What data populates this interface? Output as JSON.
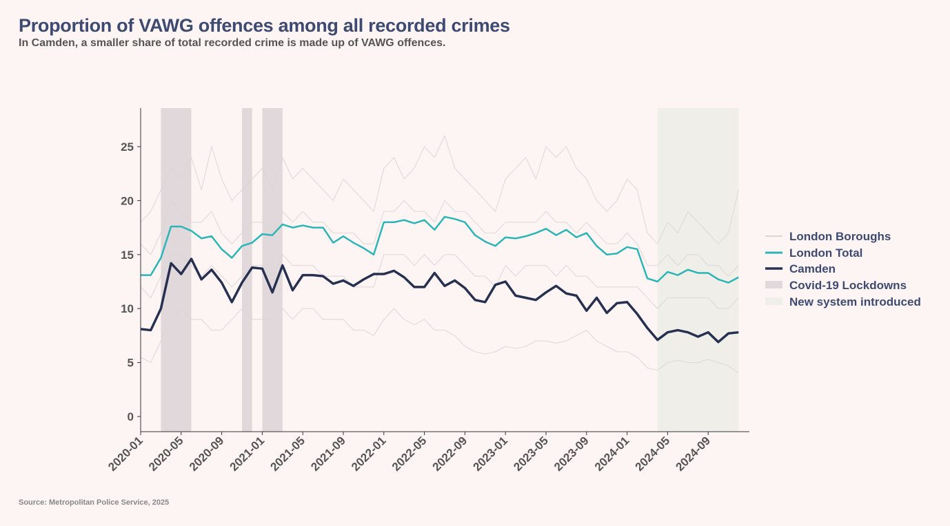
{
  "title": "Proportion of VAWG offences among all recorded crimes",
  "subtitle": "In Camden, a smaller share of total recorded crime is made up of VAWG offences.",
  "source": "Source: Metropolitan Police Service, 2025",
  "colors": {
    "background": "#fdf4f4",
    "title": "#3d4a72",
    "london_total": "#2bb5b8",
    "camden": "#263050",
    "boroughs": "#d9d6d6",
    "lockdown": "#e0d8da",
    "new_system": "#efeee9"
  },
  "chart_data": {
    "type": "line",
    "start_month": "2020-01",
    "x_ticks": [
      "2020-01",
      "2020-05",
      "2020-09",
      "2021-01",
      "2021-05",
      "2021-09",
      "2022-01",
      "2022-05",
      "2022-09",
      "2023-01",
      "2023-05",
      "2023-09",
      "2024-01",
      "2024-05",
      "2024-09"
    ],
    "y_ticks": [
      0,
      5,
      10,
      15,
      20,
      25
    ],
    "ylim": [
      -1.4,
      28.6
    ],
    "grid": false,
    "legend_position": "right",
    "legend": [
      "London Boroughs",
      "London Total",
      "Camden",
      "Covid-19 Lockdowns",
      "New system introduced"
    ],
    "series": [
      {
        "name": "London Total",
        "values": [
          13.1,
          13.1,
          14.7,
          17.6,
          17.6,
          17.2,
          16.5,
          16.7,
          15.5,
          14.7,
          15.8,
          16.1,
          16.9,
          16.8,
          17.8,
          17.5,
          17.7,
          17.5,
          17.5,
          16.1,
          16.7,
          16.1,
          15.6,
          15.0,
          18.0,
          18.0,
          18.2,
          17.9,
          18.2,
          17.3,
          18.5,
          18.3,
          18.0,
          16.8,
          16.2,
          15.8,
          16.6,
          16.5,
          16.7,
          17.0,
          17.4,
          16.8,
          17.3,
          16.6,
          17.0,
          15.8,
          15.0,
          15.1,
          15.7,
          15.5,
          12.8,
          12.5,
          13.4,
          13.1,
          13.6,
          13.3,
          13.3,
          12.7,
          12.4,
          12.9
        ]
      },
      {
        "name": "Camden",
        "values": [
          8.1,
          8.0,
          10.0,
          14.2,
          13.2,
          14.6,
          12.7,
          13.6,
          12.4,
          10.6,
          12.4,
          13.8,
          13.7,
          11.5,
          14.0,
          11.7,
          13.1,
          13.1,
          13.0,
          12.3,
          12.6,
          12.1,
          12.7,
          13.2,
          13.2,
          13.5,
          12.9,
          12.0,
          12.0,
          13.3,
          12.1,
          12.6,
          11.9,
          10.8,
          10.6,
          12.2,
          12.5,
          11.2,
          11.0,
          10.8,
          11.5,
          12.1,
          11.4,
          11.2,
          9.8,
          11.0,
          9.6,
          10.5,
          10.6,
          9.5,
          8.2,
          7.1,
          7.8,
          8.0,
          7.8,
          7.4,
          7.8,
          6.9,
          7.7,
          7.8
        ]
      }
    ],
    "borough_series": [
      [
        18,
        19,
        21,
        23,
        22,
        24,
        21,
        25,
        22,
        20,
        21,
        22,
        23,
        21,
        24,
        22,
        23,
        22,
        21,
        20,
        22,
        21,
        20,
        19,
        23,
        24,
        22,
        23,
        25,
        24,
        26,
        23,
        22,
        21,
        20,
        19,
        22,
        23,
        24,
        22,
        25,
        24,
        25,
        23,
        22,
        20,
        19,
        20,
        22,
        21,
        17,
        16,
        18,
        17,
        19,
        18,
        17,
        16,
        17,
        21
      ],
      [
        16,
        15,
        17,
        20,
        19,
        18,
        18,
        19,
        17,
        16,
        17,
        18,
        18,
        17,
        19,
        18,
        19,
        18,
        18,
        17,
        17,
        17,
        16,
        16,
        19,
        19,
        20,
        19,
        19,
        18,
        20,
        19,
        19,
        18,
        17,
        17,
        18,
        18,
        18,
        18,
        19,
        18,
        18,
        17,
        18,
        17,
        16,
        16,
        17,
        16,
        14,
        14,
        15,
        14,
        15,
        15,
        14,
        14,
        13,
        14
      ],
      [
        12,
        11,
        13,
        15,
        15,
        14,
        13,
        14,
        13,
        12,
        13,
        14,
        14,
        13,
        15,
        14,
        14,
        14,
        13,
        13,
        13,
        12,
        12,
        12,
        15,
        15,
        15,
        14,
        15,
        14,
        15,
        15,
        14,
        13,
        13,
        12,
        14,
        13,
        14,
        14,
        14,
        13,
        14,
        13,
        13,
        12,
        12,
        12,
        12,
        12,
        11,
        10,
        11,
        11,
        11,
        11,
        11,
        10,
        10,
        11
      ],
      [
        5.5,
        5,
        7,
        9,
        10,
        9,
        9,
        8,
        8,
        9,
        10,
        9,
        9,
        9,
        10,
        9,
        10,
        10,
        9,
        9,
        9,
        8,
        8,
        7.5,
        9,
        10,
        9,
        8.5,
        9,
        8,
        8,
        7.5,
        6.5,
        6,
        5.8,
        6,
        6.5,
        6.3,
        6.5,
        7,
        7,
        6.8,
        7,
        7.5,
        8,
        7,
        6.5,
        6,
        6,
        5.5,
        4.5,
        4.3,
        5,
        5.2,
        5,
        5,
        5.3,
        5,
        4.7,
        4
      ]
    ],
    "shaded_periods": [
      {
        "label": "Covid-19 Lockdowns",
        "start": "2020-03",
        "end": "2020-06"
      },
      {
        "label": "Covid-19 Lockdowns",
        "start": "2020-11",
        "end": "2020-12"
      },
      {
        "label": "Covid-19 Lockdowns",
        "start": "2021-01",
        "end": "2021-03"
      },
      {
        "label": "New system introduced",
        "start": "2024-04",
        "end": "2024-12"
      }
    ]
  }
}
